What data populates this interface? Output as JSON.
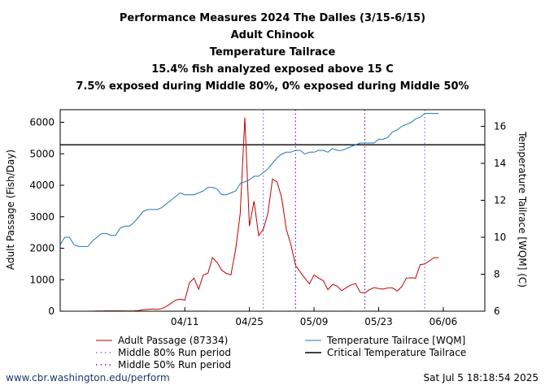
{
  "titles": [
    "Performance Measures 2024 The Dalles (3/15-6/15)",
    "Adult Chinook",
    "Temperature Tailrace",
    "15.4% fish analyzed exposed above 15 C",
    "7.5% exposed during Middle 80%, 0% exposed during Middle 50%"
  ],
  "footer": {
    "left": "www.cbr.washington.edu/perform",
    "right": "Sat Jul  5 18:18:54 2025"
  },
  "legend": {
    "passage": "Adult Passage (87334)",
    "temperature": "Temperature Tailrace [WQM]",
    "mid80": "Middle 80% Run period",
    "critical": "Critical Temperature Tailrace",
    "mid50": "Middle 50% Run period"
  },
  "colors": {
    "passage": "#c00000",
    "temperature": "#1f77b4",
    "mid80": "#9370db",
    "mid50": "#7b1fa2",
    "critical": "#000000"
  },
  "chart_data": {
    "type": "line",
    "x_tick_labels": [
      "04/11",
      "04/25",
      "05/09",
      "05/23",
      "06/06"
    ],
    "x_tick_days": [
      27,
      41,
      55,
      69,
      83
    ],
    "xlim_days": [
      0,
      92
    ],
    "ylabel": "Adult Passage (Fish/Day)",
    "y2label": "Temperature Tailrace [WQM] (C)",
    "ylim": [
      0,
      6400
    ],
    "y_ticks": [
      0,
      1000,
      2000,
      3000,
      4000,
      5000,
      6000
    ],
    "y2lim": [
      6,
      16.9
    ],
    "y2_ticks": [
      6,
      8,
      10,
      12,
      14,
      16
    ],
    "critical_temperature": 15,
    "middle_80_days": [
      44,
      79
    ],
    "middle_50_days": [
      51,
      66
    ],
    "exposed_start_day": 83,
    "series": [
      {
        "name": "Adult Passage (87334)",
        "axis": "left",
        "values": [
          0,
          0,
          0,
          0,
          0,
          0,
          0,
          0,
          5,
          5,
          10,
          10,
          10,
          10,
          5,
          5,
          10,
          20,
          50,
          60,
          70,
          60,
          80,
          150,
          250,
          350,
          380,
          350,
          900,
          1050,
          700,
          1150,
          1200,
          1700,
          1550,
          1300,
          1200,
          1150,
          1950,
          3100,
          6150,
          2700,
          3500,
          2400,
          2600,
          3100,
          4200,
          4100,
          3600,
          2600,
          2100,
          1450,
          1250,
          1050,
          870,
          1150,
          1050,
          970,
          680,
          850,
          800,
          650,
          750,
          830,
          880,
          600,
          580,
          680,
          750,
          720,
          700,
          740,
          740,
          640,
          780,
          1050,
          1060,
          1050,
          1480,
          1500,
          1600,
          1700,
          1700
        ]
      },
      {
        "name": "Temperature Tailrace [WQM]",
        "axis": "right",
        "values": [
          9.6,
          10.0,
          10.0,
          9.6,
          9.5,
          9.5,
          9.5,
          9.8,
          10.0,
          10.2,
          10.2,
          10.1,
          10.1,
          10.5,
          10.6,
          10.6,
          10.8,
          11.1,
          11.4,
          11.5,
          11.5,
          11.5,
          11.6,
          11.8,
          12.0,
          12.2,
          12.4,
          12.3,
          12.3,
          12.3,
          12.4,
          12.5,
          12.7,
          12.7,
          12.6,
          12.3,
          12.3,
          12.4,
          12.5,
          12.9,
          13.0,
          13.1,
          13.3,
          13.3,
          13.5,
          13.7,
          14.0,
          14.3,
          14.5,
          14.6,
          14.6,
          14.7,
          14.7,
          14.5,
          14.6,
          14.6,
          14.7,
          14.7,
          14.6,
          14.8,
          14.7,
          14.7,
          14.8,
          14.9,
          15.0,
          15.1,
          15.1,
          15.1,
          15.1,
          15.3,
          15.3,
          15.4,
          15.7,
          15.8,
          16.0,
          16.1,
          16.2,
          16.4,
          16.5,
          16.7,
          16.7,
          16.7,
          16.7
        ]
      }
    ]
  }
}
